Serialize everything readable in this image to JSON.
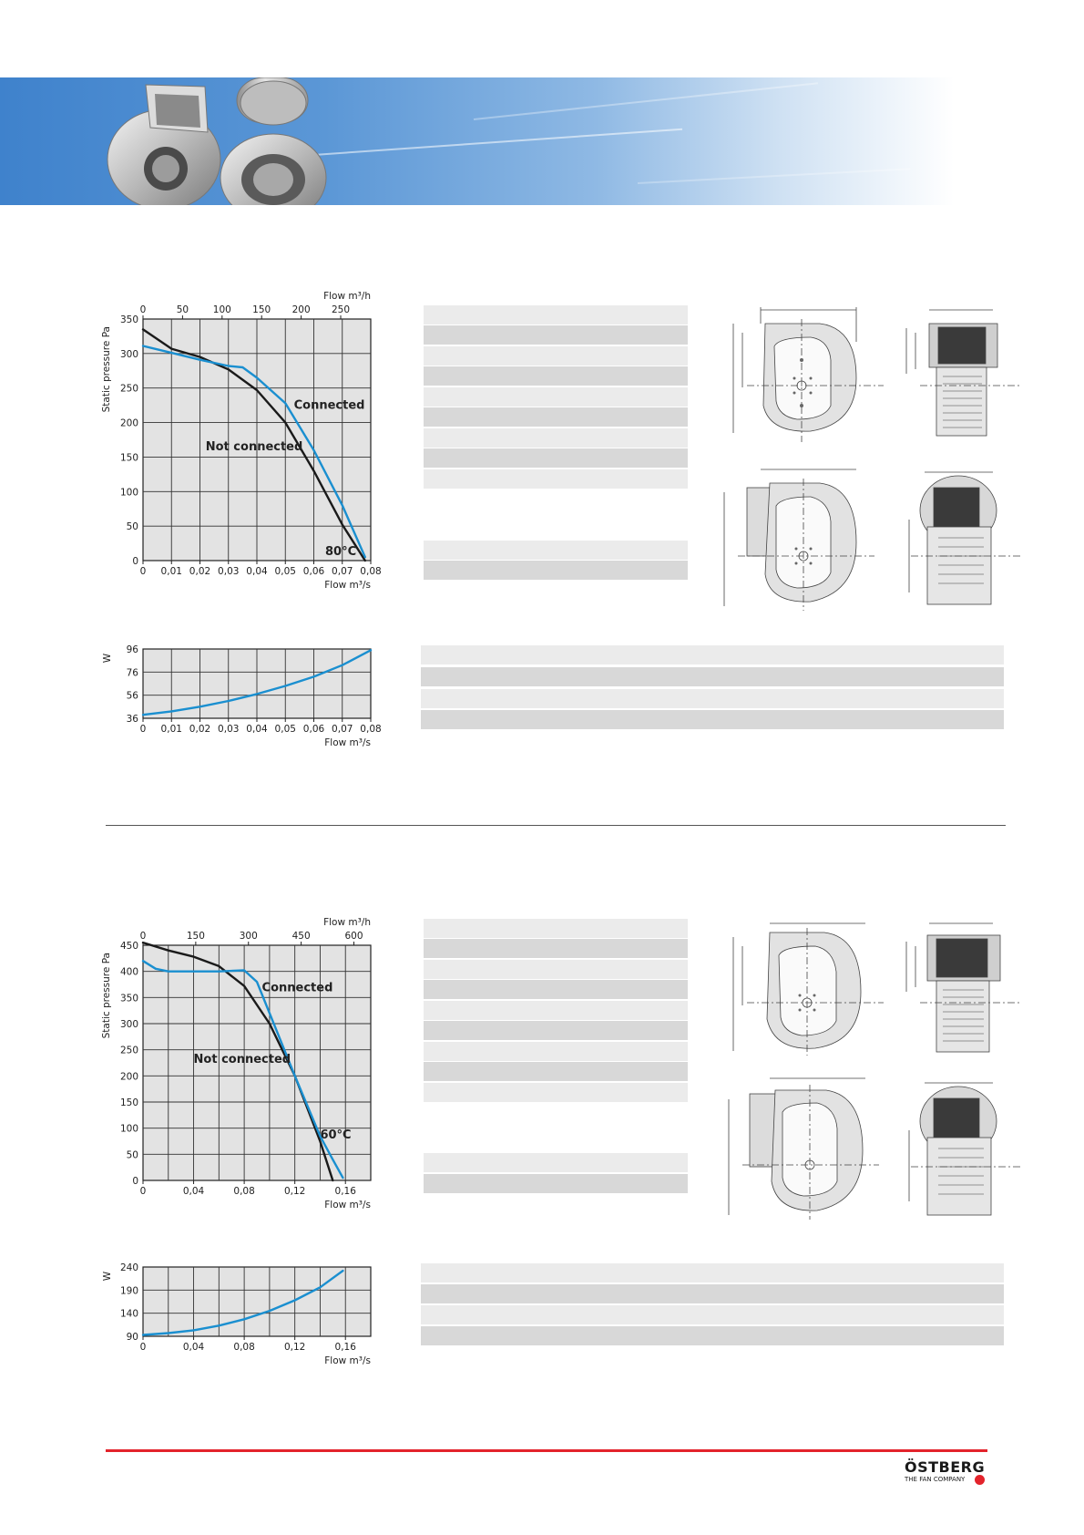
{
  "brand": {
    "name": "ÖSTBERG",
    "tagline": "THE FAN COMPANY",
    "red": "#e3232b",
    "blue": "#1a8fd0"
  },
  "banner": {
    "colors": [
      "#3f82cc",
      "#8fb9e4",
      "#ffffff"
    ]
  },
  "chart_data": [
    {
      "type": "line",
      "title": "",
      "ylabel": "Static pressure Pa",
      "xlabel": "Flow m³/s",
      "x2label": "Flow m³/h",
      "xlim": [
        0,
        0.08
      ],
      "ylim": [
        0,
        350
      ],
      "x_ticks": [
        "0",
        "0,01",
        "0,02",
        "0,03",
        "0,04",
        "0,05",
        "0,06",
        "0,07",
        "0,08"
      ],
      "y_ticks": [
        "0",
        "50",
        "100",
        "150",
        "200",
        "250",
        "300",
        "350"
      ],
      "x2_ticks": [
        "0",
        "50",
        "100",
        "150",
        "200",
        "250"
      ],
      "x2_tick_values": [
        0,
        50,
        100,
        150,
        200,
        250
      ],
      "x2_unit_per_x": 3600,
      "grid": true,
      "annotations": [
        "Connected",
        "Not connected",
        "80°C"
      ],
      "series": [
        {
          "name": "Not connected",
          "color": "#1a1a1a",
          "x": [
            0,
            0.01,
            0.02,
            0.03,
            0.04,
            0.05,
            0.06,
            0.07,
            0.078
          ],
          "y": [
            335,
            307,
            295,
            277,
            247,
            200,
            130,
            52,
            0
          ]
        },
        {
          "name": "Connected",
          "color": "#1a8fd0",
          "x": [
            0,
            0.01,
            0.02,
            0.03,
            0.035,
            0.04,
            0.05,
            0.06,
            0.07,
            0.078
          ],
          "y": [
            311,
            301,
            291,
            282,
            280,
            265,
            228,
            160,
            80,
            5
          ]
        }
      ]
    },
    {
      "type": "line",
      "title": "",
      "ylabel": "W",
      "xlabel": "Flow m³/s",
      "xlim": [
        0,
        0.08
      ],
      "ylim": [
        36,
        96
      ],
      "x_ticks": [
        "0",
        "0,01",
        "0,02",
        "0,03",
        "0,04",
        "0,05",
        "0,06",
        "0,07",
        "0,08"
      ],
      "y_ticks": [
        "36",
        "56",
        "76",
        "96"
      ],
      "grid": true,
      "series": [
        {
          "color": "#1a8fd0",
          "x": [
            0,
            0.01,
            0.02,
            0.03,
            0.04,
            0.05,
            0.06,
            0.07,
            0.08
          ],
          "y": [
            39,
            42,
            46,
            51,
            57,
            64,
            72,
            82,
            95
          ]
        }
      ]
    },
    {
      "type": "line",
      "title": "",
      "ylabel": "Static pressure Pa",
      "xlabel": "Flow m³/s",
      "x2label": "Flow m³/h",
      "xlim": [
        0,
        0.18
      ],
      "ylim": [
        0,
        450
      ],
      "x_ticks": [
        "0",
        "0,04",
        "0,08",
        "0,12",
        "0,16"
      ],
      "x_tick_values": [
        0,
        0.04,
        0.08,
        0.12,
        0.16
      ],
      "y_ticks": [
        "0",
        "50",
        "100",
        "150",
        "200",
        "250",
        "300",
        "350",
        "400",
        "450"
      ],
      "x2_ticks": [
        "0",
        "150",
        "300",
        "450",
        "600"
      ],
      "x2_tick_values": [
        0,
        150,
        300,
        450,
        600
      ],
      "x2_unit_per_x": 3600,
      "grid": true,
      "annotations": [
        "Connected",
        "Not connected",
        "60°C"
      ],
      "series": [
        {
          "name": "Not connected",
          "color": "#1a1a1a",
          "x": [
            0,
            0.02,
            0.04,
            0.06,
            0.08,
            0.1,
            0.12,
            0.14,
            0.15
          ],
          "y": [
            455,
            440,
            428,
            410,
            372,
            300,
            200,
            75,
            0
          ]
        },
        {
          "name": "Connected",
          "color": "#1a8fd0",
          "x": [
            0,
            0.01,
            0.02,
            0.04,
            0.06,
            0.08,
            0.09,
            0.1,
            0.12,
            0.14,
            0.15,
            0.158
          ],
          "y": [
            420,
            405,
            400,
            400,
            400,
            402,
            380,
            320,
            200,
            85,
            40,
            5
          ]
        }
      ]
    },
    {
      "type": "line",
      "title": "",
      "ylabel": "W",
      "xlabel": "Flow m³/s",
      "xlim": [
        0,
        0.18
      ],
      "ylim": [
        90,
        240
      ],
      "x_ticks": [
        "0",
        "0,04",
        "0,08",
        "0,12",
        "0,16"
      ],
      "x_tick_values": [
        0,
        0.04,
        0.08,
        0.12,
        0.16
      ],
      "y_ticks": [
        "90",
        "140",
        "190",
        "240"
      ],
      "grid": true,
      "series": [
        {
          "color": "#1a8fd0",
          "x": [
            0,
            0.02,
            0.04,
            0.06,
            0.08,
            0.1,
            0.12,
            0.14,
            0.158
          ],
          "y": [
            93,
            97,
            103,
            113,
            127,
            145,
            168,
            196,
            232
          ]
        }
      ]
    }
  ]
}
